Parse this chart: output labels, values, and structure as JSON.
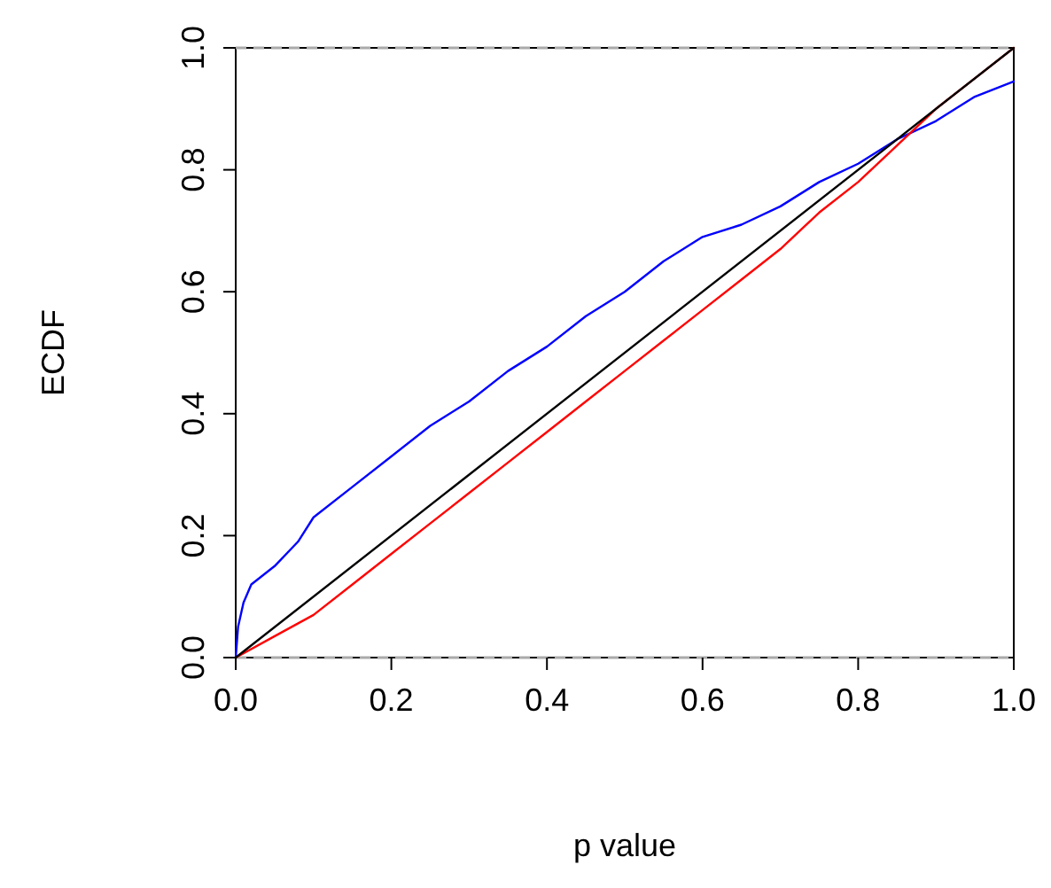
{
  "chart_data": {
    "type": "line",
    "xlabel": "p value",
    "ylabel": "ECDF",
    "xlim": [
      0,
      1
    ],
    "ylim": [
      0,
      1
    ],
    "xticks": [
      {
        "value": 0,
        "label": "0.0"
      },
      0.2,
      0.4,
      0.6,
      0.8,
      {
        "value": 1,
        "label": "1.0"
      }
    ],
    "yticks": [
      {
        "value": 0,
        "label": "0.0"
      },
      0.2,
      0.4,
      0.6,
      0.8,
      {
        "value": 1,
        "label": "1.0"
      }
    ],
    "line_style": "solid",
    "marker": "none",
    "ref_lines": [
      {
        "axis": "y",
        "value": 0,
        "color": "#aaaaaa",
        "line_style": "dashed"
      },
      {
        "axis": "y",
        "value": 1,
        "color": "#aaaaaa",
        "line_style": "dashed"
      }
    ],
    "series": [
      {
        "color": "#0000ff",
        "x": [
          0,
          0.003,
          0.01,
          0.02,
          0.05,
          0.08,
          0.1,
          0.15,
          0.2,
          0.25,
          0.3,
          0.35,
          0.4,
          0.45,
          0.5,
          0.55,
          0.6,
          0.65,
          0.7,
          0.75,
          0.8,
          0.85,
          0.9,
          0.95,
          1
        ],
        "values": [
          0,
          0.05,
          0.09,
          0.12,
          0.15,
          0.19,
          0.23,
          0.28,
          0.33,
          0.38,
          0.42,
          0.47,
          0.51,
          0.56,
          0.6,
          0.65,
          0.69,
          0.71,
          0.74,
          0.78,
          0.81,
          0.85,
          0.88,
          0.92,
          0.945
        ]
      },
      {
        "color": "#ff0000",
        "x": [
          0,
          0.05,
          0.1,
          0.15,
          0.2,
          0.25,
          0.3,
          0.35,
          0.4,
          0.45,
          0.5,
          0.55,
          0.6,
          0.65,
          0.7,
          0.75,
          0.8,
          0.85,
          0.9,
          0.95,
          1
        ],
        "values": [
          0,
          0.035,
          0.07,
          0.12,
          0.17,
          0.22,
          0.27,
          0.32,
          0.37,
          0.42,
          0.47,
          0.52,
          0.57,
          0.62,
          0.67,
          0.73,
          0.78,
          0.84,
          0.9,
          0.95,
          1
        ]
      },
      {
        "color": "#000000",
        "x": [
          0,
          1
        ],
        "values": [
          0,
          1
        ]
      }
    ]
  }
}
